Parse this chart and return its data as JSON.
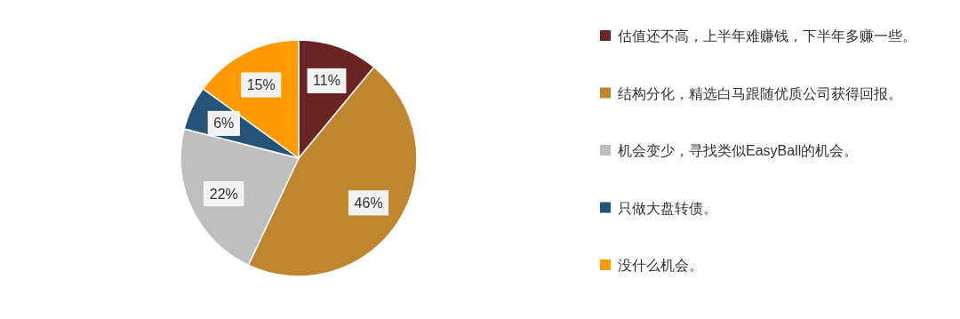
{
  "chart_data": {
    "type": "pie",
    "categories": [
      "估值还不高，上半年难赚钱，下半年多赚一些。",
      "结构分化，精选白马跟随优质公司获得回报。",
      "机会变少，寻找类似EasyBall的机会。",
      "只做大盘转债。",
      "没什么机会。"
    ],
    "values": [
      11,
      46,
      22,
      6,
      15
    ],
    "value_labels": [
      "11%",
      "46%",
      "22%",
      "6%",
      "15%"
    ],
    "colors": [
      "#6b2424",
      "#c0862f",
      "#bfbfbf",
      "#255478",
      "#ff9a00"
    ],
    "legend": "right"
  }
}
